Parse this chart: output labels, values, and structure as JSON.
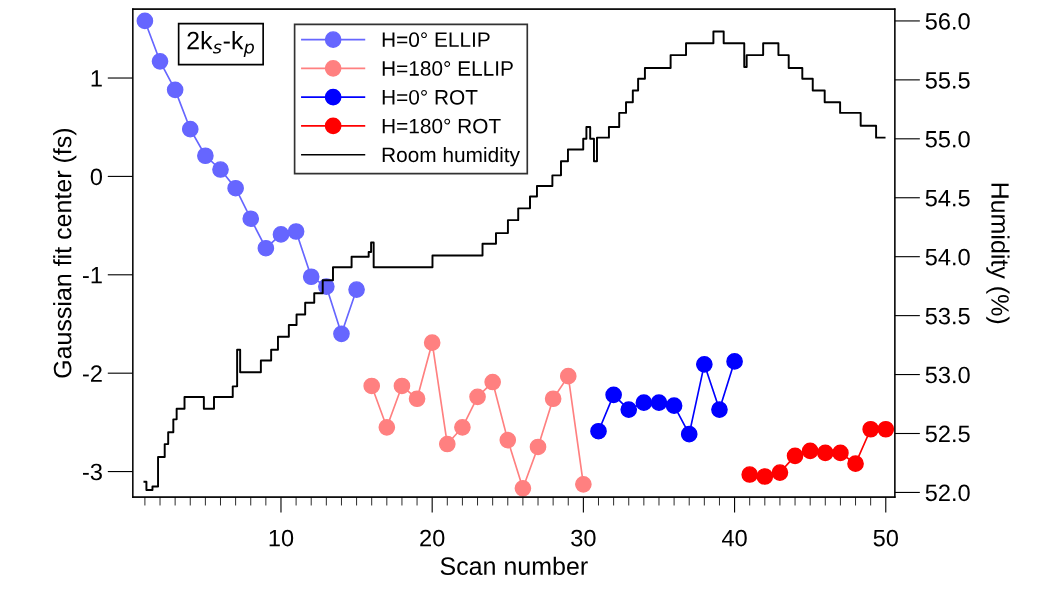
{
  "chart_data": {
    "type": "line",
    "xlabel": "Scan number",
    "ylabel": "Gaussian fit center (fs)",
    "y2label": "Humidity (%)",
    "annotations": [
      "2k$_{s}$-k$_{p}$"
    ],
    "xlim": [
      0.2,
      50.6
    ],
    "xticks": [
      10,
      20,
      30,
      40,
      50
    ],
    "ylim": [
      -3.26,
      1.7
    ],
    "yticks": [
      -3,
      -2,
      -1,
      0,
      1
    ],
    "y2lim": [
      51.96,
      56.1
    ],
    "y2ticks": [
      {
        "value": 52,
        "label": "52.0"
      },
      {
        "value": 52.5,
        "label": "52.5"
      },
      {
        "value": 53,
        "label": "53.0"
      },
      {
        "value": 53.5,
        "label": "53.5"
      },
      {
        "value": 54,
        "label": "54.0"
      },
      {
        "value": 54.5,
        "label": "54.5"
      },
      {
        "value": 55,
        "label": "55.0"
      },
      {
        "value": 55.5,
        "label": "55.5"
      },
      {
        "value": 56,
        "label": "56.0"
      }
    ],
    "grid": false,
    "legend": "top",
    "marker": "circle",
    "series": [
      {
        "name": "H=0° ELLIP",
        "color": "#6666ff",
        "x": [
          1,
          2,
          3,
          4,
          5,
          6,
          7,
          8,
          9,
          10,
          11,
          12,
          13,
          14,
          15
        ],
        "values": [
          1.58,
          1.17,
          0.88,
          0.48,
          0.21,
          0.07,
          -0.12,
          -0.43,
          -0.73,
          -0.59,
          -0.56,
          -1.02,
          -1.12,
          -1.6,
          -1.15
        ]
      },
      {
        "name": "H=180° ELLIP",
        "color": "#ff8080",
        "x": [
          16,
          17,
          18,
          19,
          20,
          21,
          22,
          23,
          24,
          25,
          26,
          27,
          28,
          29,
          30
        ],
        "values": [
          -2.13,
          -2.55,
          -2.13,
          -2.26,
          -1.69,
          -2.72,
          -2.55,
          -2.24,
          -2.09,
          -2.68,
          -3.17,
          -2.75,
          -2.26,
          -2.03,
          -3.13
        ]
      },
      {
        "name": "H=0° ROT",
        "color": "#0000ff",
        "x": [
          31,
          32,
          33,
          34,
          35,
          36,
          37,
          38,
          39,
          40
        ],
        "values": [
          -2.59,
          -2.22,
          -2.37,
          -2.3,
          -2.3,
          -2.33,
          -2.62,
          -1.91,
          -2.37,
          -1.88
        ]
      },
      {
        "name": "H=180° ROT",
        "color": "#ff0000",
        "x": [
          41,
          42,
          43,
          44,
          45,
          46,
          47,
          48,
          49,
          50
        ],
        "values": [
          -3.03,
          -3.05,
          -3.01,
          -2.84,
          -2.79,
          -2.81,
          -2.81,
          -2.92,
          -2.57,
          -2.57
        ]
      },
      {
        "name": "Room humidity",
        "color": "#000000",
        "type": "step",
        "axis": "y2",
        "marker": "none",
        "x": [
          0.97,
          1.1,
          1.5,
          1.87,
          2.31,
          2.54,
          2.88,
          3.1,
          3.62,
          4.9,
          5.57,
          6.81,
          7.1,
          7.3,
          8.67,
          9.35,
          9.8,
          10.52,
          11.03,
          11.6,
          12.2,
          12.76,
          13.44,
          14.67,
          15.8,
          15.96,
          16.13,
          20.02,
          23.33,
          24.22,
          25.01,
          25.69,
          26.47,
          26.93,
          27.95,
          28.52,
          28.98,
          29.99,
          30.2,
          30.45,
          30.7,
          30.9,
          31.69,
          32.37,
          32.82,
          33.27,
          33.62,
          34.07,
          35.77,
          36.79,
          38.6,
          39.28,
          40.64,
          40.8,
          41.89,
          42.9,
          43.58,
          44.48,
          45.17,
          45.96,
          46.98,
          48.34,
          49.36,
          49.92
        ],
        "values": [
          52.09,
          52.02,
          52.05,
          52.3,
          52.41,
          52.51,
          52.62,
          52.71,
          52.81,
          52.71,
          52.81,
          52.9,
          53.21,
          53.02,
          53.12,
          53.21,
          53.32,
          53.42,
          53.51,
          53.61,
          53.69,
          53.8,
          53.91,
          54.0,
          54.04,
          54.12,
          53.91,
          54.01,
          54.11,
          54.2,
          54.31,
          54.41,
          54.51,
          54.6,
          54.69,
          54.81,
          54.91,
          55.0,
          55.1,
          55.0,
          54.81,
          55.01,
          55.1,
          55.22,
          55.31,
          55.41,
          55.51,
          55.6,
          55.71,
          55.81,
          55.91,
          55.81,
          55.61,
          55.71,
          55.81,
          55.71,
          55.6,
          55.51,
          55.41,
          55.31,
          55.22,
          55.11,
          55.01,
          55.01
        ]
      }
    ]
  }
}
